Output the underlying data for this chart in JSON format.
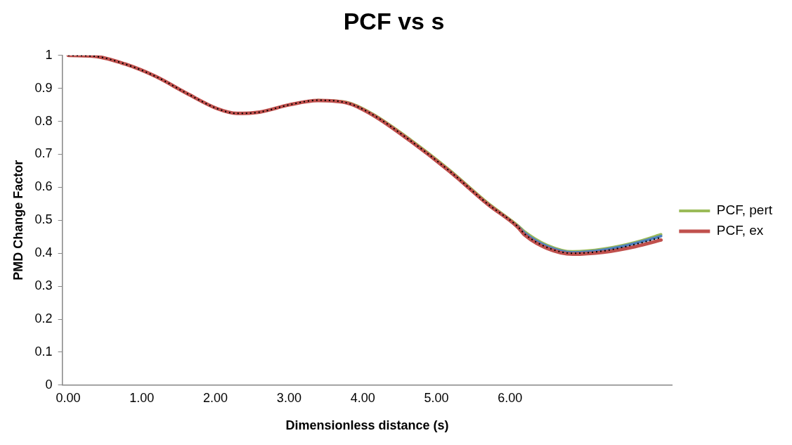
{
  "chart_data": {
    "type": "line",
    "title": "PCF vs s",
    "xlabel": "Dimensionless distance (s)",
    "ylabel": "PMD Change Factor",
    "x": [
      0,
      0.37,
      0.77,
      1.19,
      1.61,
      2.03,
      2.29,
      2.6,
      3.0,
      3.39,
      3.8,
      4.13,
      4.65,
      5.17,
      5.7,
      6.1,
      6.2,
      6.5,
      6.85,
      7.27,
      7.7,
      8.05
    ],
    "series": [
      {
        "name": "PCF, pert",
        "color": "#9bbb59",
        "values": [
          null,
          null,
          null,
          null,
          null,
          null,
          null,
          null,
          null,
          0.864,
          0.857,
          0.823,
          0.744,
          0.654,
          0.552,
          0.485,
          0.465,
          0.425,
          0.405,
          0.413,
          0.433,
          0.457
        ]
      },
      {
        "color": "#4f81bd",
        "values": [
          null,
          null,
          null,
          null,
          null,
          null,
          null,
          null,
          null,
          null,
          null,
          null,
          null,
          null,
          null,
          0.483,
          0.461,
          0.421,
          0.402,
          0.41,
          0.43,
          0.452
        ]
      },
      {
        "name": "PCF, ex",
        "color": "#c0504d",
        "values": [
          1.0,
          0.997,
          0.974,
          0.936,
          0.885,
          0.838,
          0.824,
          0.828,
          0.85,
          0.863,
          0.855,
          0.82,
          0.74,
          0.65,
          0.548,
          0.48,
          0.455,
          0.415,
          0.397,
          0.403,
          0.42,
          0.44
        ]
      },
      {
        "color": "#000000",
        "line_style": "dotted",
        "values": [
          1.0,
          0.997,
          0.974,
          0.936,
          0.885,
          0.838,
          0.824,
          0.828,
          0.85,
          0.864,
          0.855,
          0.821,
          0.741,
          0.651,
          0.549,
          0.482,
          0.458,
          0.418,
          0.4,
          0.407,
          0.427,
          0.448
        ]
      }
    ],
    "xlim": [
      -0.08,
      8.2
    ],
    "xticks": [
      {
        "value": 0,
        "label": "0.00"
      },
      {
        "value": 1,
        "label": "1.00"
      },
      {
        "value": 2,
        "label": "2.00"
      },
      {
        "value": 3,
        "label": "3.00"
      },
      {
        "value": 4,
        "label": "4.00"
      },
      {
        "value": 5,
        "label": "5.00"
      },
      {
        "value": 6,
        "label": "6.00"
      }
    ],
    "ylim": [
      0,
      1
    ],
    "yticks": [
      0,
      0.1,
      0.2,
      0.3,
      0.4,
      0.5,
      0.6,
      0.7,
      0.8,
      0.9,
      1
    ],
    "grid": false,
    "legend": "right",
    "marker": "none",
    "line_style": "solid"
  }
}
